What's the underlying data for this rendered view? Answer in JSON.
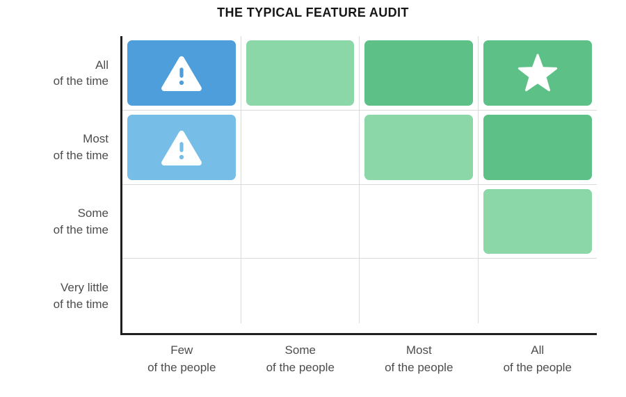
{
  "title": "THE TYPICAL FEATURE AUDIT",
  "colors": {
    "blue": "#4D9EDB",
    "light_blue": "#76BEE8",
    "green": "#5DC187",
    "light_green": "#8BD7A8",
    "gridline": "#DBDBDB",
    "axis": "#1F1F1F",
    "label_text": "#4C4C4C",
    "title_text": "#161616",
    "icon": "#FFFFFF"
  },
  "axes": {
    "y": [
      "All\nof the time",
      "Most\nof the time",
      "Some\nof the time",
      "Very little\nof the time"
    ],
    "x": [
      "Few\nof the people",
      "Some\nof the people",
      "Most\nof the people",
      "All\nof the people"
    ]
  },
  "chart_data": {
    "type": "heatmap",
    "title": "THE TYPICAL FEATURE AUDIT",
    "x_categories": [
      "Few of the people",
      "Some of the people",
      "Most of the people",
      "All of the people"
    ],
    "y_categories": [
      "All of the time",
      "Most of the time",
      "Some of the time",
      "Very little of the time"
    ],
    "legend": "none",
    "grid": true,
    "cells": [
      [
        {
          "color": "blue",
          "icon": "warning-icon"
        },
        {
          "color": "light_green",
          "icon": null
        },
        {
          "color": "green",
          "icon": null
        },
        {
          "color": "green",
          "icon": "star-icon"
        }
      ],
      [
        {
          "color": "light_blue",
          "icon": "warning-icon"
        },
        {
          "color": null,
          "icon": null
        },
        {
          "color": "light_green",
          "icon": null
        },
        {
          "color": "green",
          "icon": null
        }
      ],
      [
        {
          "color": null,
          "icon": null
        },
        {
          "color": null,
          "icon": null
        },
        {
          "color": null,
          "icon": null
        },
        {
          "color": "light_green",
          "icon": null
        }
      ],
      [
        {
          "color": null,
          "icon": null
        },
        {
          "color": null,
          "icon": null
        },
        {
          "color": null,
          "icon": null
        },
        {
          "color": null,
          "icon": null
        }
      ]
    ]
  }
}
